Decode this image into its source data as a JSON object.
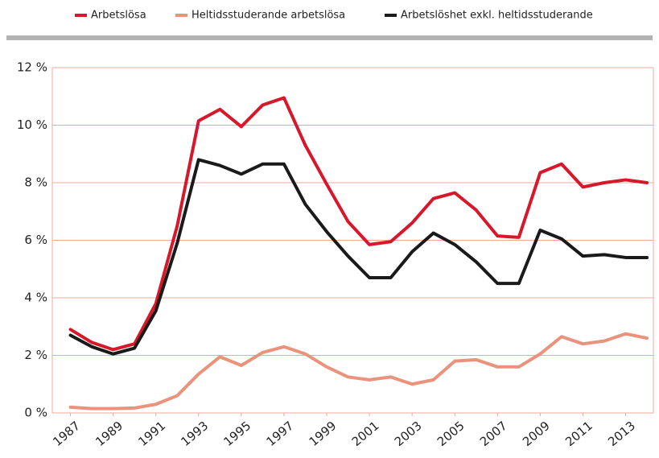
{
  "chart_data": {
    "type": "line",
    "x": [
      1987,
      1988,
      1989,
      1990,
      1991,
      1992,
      1993,
      1994,
      1995,
      1996,
      1997,
      1998,
      1999,
      2000,
      2001,
      2002,
      2003,
      2004,
      2005,
      2006,
      2007,
      2008,
      2009,
      2010,
      2011,
      2012,
      2013,
      2014
    ],
    "series": [
      {
        "name": "Arbetslösa",
        "color": "#d7182a",
        "values": [
          2.9,
          2.45,
          2.2,
          2.4,
          3.8,
          6.5,
          10.15,
          10.55,
          9.95,
          10.7,
          10.95,
          9.3,
          7.95,
          6.65,
          5.85,
          5.95,
          6.6,
          7.45,
          7.65,
          7.05,
          6.15,
          6.1,
          8.35,
          8.65,
          7.85,
          8.0,
          8.1,
          8.0
        ]
      },
      {
        "name": "Heltidsstuderande arbetslösa",
        "color": "#eb927c",
        "values": [
          0.2,
          0.15,
          0.15,
          0.17,
          0.3,
          0.6,
          1.35,
          1.95,
          1.65,
          2.1,
          2.3,
          2.05,
          1.6,
          1.25,
          1.15,
          1.25,
          1.0,
          1.15,
          1.8,
          1.85,
          1.6,
          1.6,
          2.05,
          2.65,
          2.4,
          2.5,
          2.75,
          2.6
        ]
      },
      {
        "name": "Arbetslöshet exkl. heltidsstuderande",
        "color": "#1a1a1a",
        "values": [
          2.7,
          2.3,
          2.05,
          2.25,
          3.55,
          5.9,
          8.8,
          8.6,
          8.3,
          8.65,
          8.65,
          7.25,
          6.3,
          5.45,
          4.7,
          4.7,
          5.6,
          6.25,
          5.85,
          5.25,
          4.5,
          4.5,
          6.35,
          6.05,
          5.45,
          5.5,
          5.4,
          5.4
        ]
      }
    ],
    "xlim": [
      1986.15,
      2014.3
    ],
    "xticks": [
      1987,
      1989,
      1991,
      1993,
      1995,
      1997,
      1999,
      2001,
      2003,
      2005,
      2007,
      2009,
      2011,
      2013
    ],
    "ylim": [
      0,
      12
    ],
    "yticks": [
      {
        "value": 0,
        "label": "0 %"
      },
      {
        "value": 2,
        "label": "2 %"
      },
      {
        "value": 4,
        "label": "4 %"
      },
      {
        "value": 6,
        "label": "6 %"
      },
      {
        "value": 8,
        "label": "8 %"
      },
      {
        "value": 10,
        "label": "10 %"
      },
      {
        "value": 12,
        "label": "12 %"
      }
    ],
    "grid": true,
    "grid_color": "#f0a898",
    "legend": "top"
  }
}
